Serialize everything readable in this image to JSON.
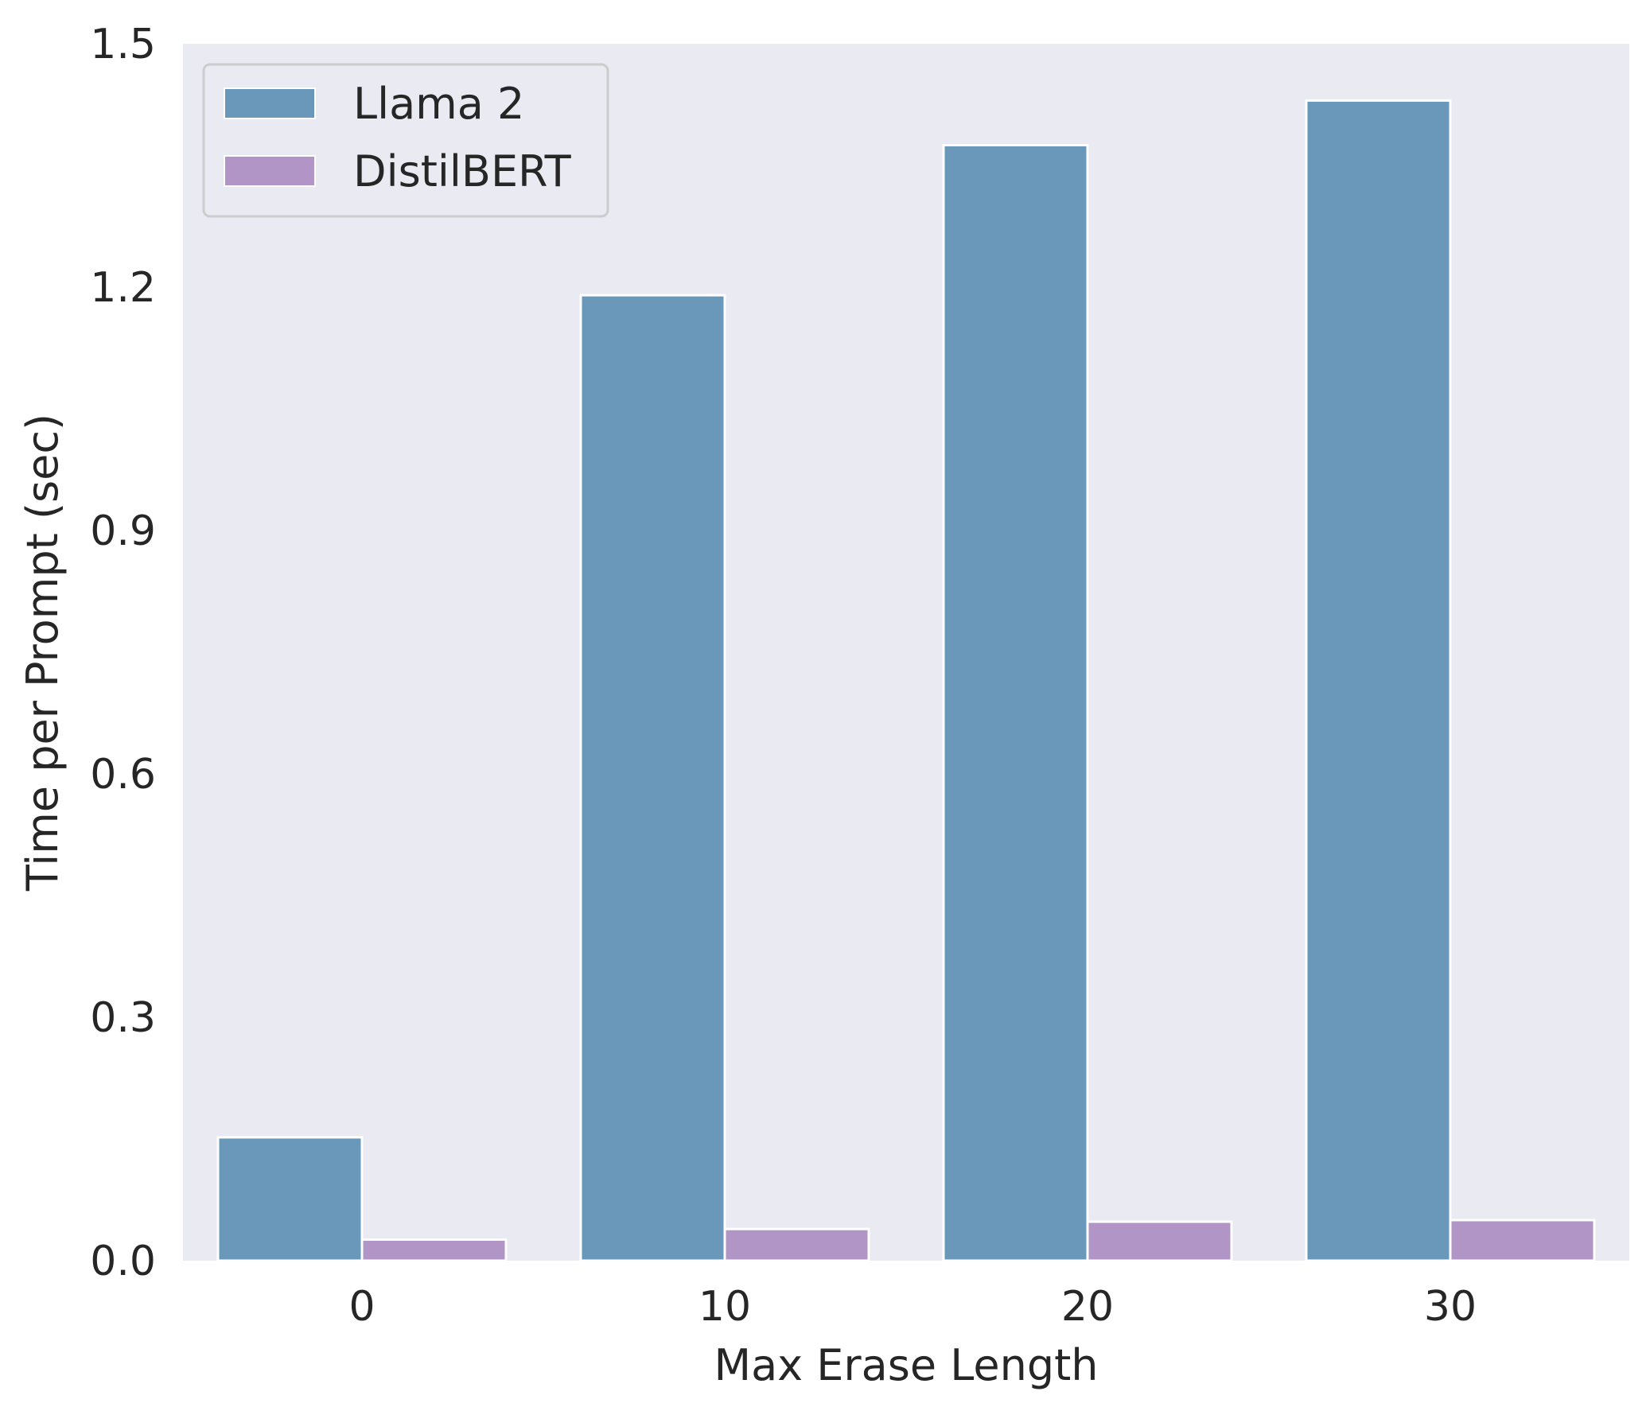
{
  "chart_data": {
    "type": "bar",
    "categories": [
      "0",
      "10",
      "20",
      "30"
    ],
    "series": [
      {
        "name": "Llama 2",
        "values": [
          0.152,
          1.19,
          1.375,
          1.43
        ],
        "color": "#6a98ba"
      },
      {
        "name": "DistilBERT",
        "values": [
          0.026,
          0.039,
          0.048,
          0.05
        ],
        "color": "#b095c6"
      }
    ],
    "xlabel": "Max Erase Length",
    "ylabel": "Time per Prompt (sec)",
    "ylim": [
      0,
      1.5
    ],
    "yticks": [
      "0.0",
      "0.3",
      "0.6",
      "0.9",
      "1.2",
      "1.5"
    ],
    "grid": false,
    "legend_position": "top-left",
    "plot_background": "#eaeaf2"
  }
}
